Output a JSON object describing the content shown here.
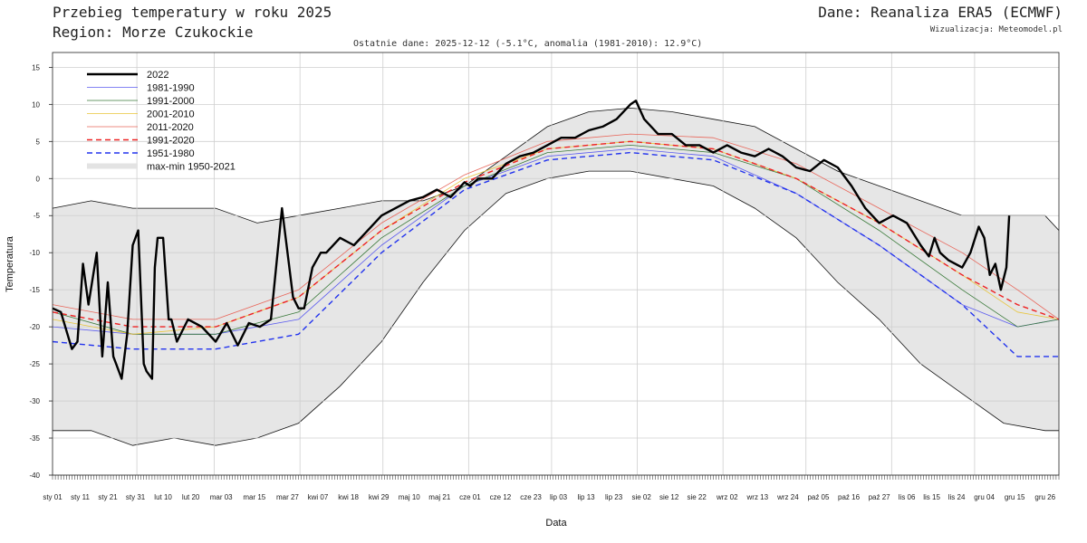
{
  "header": {
    "title": "Przebieg temperatury w roku 2025",
    "region": "Region: Morze Czukockie",
    "source": "Dane: Reanaliza ERA5 (ECMWF)",
    "credit": "Wizualizacja: Meteomodel.pl",
    "latest": "Ostatnie dane: 2025-12-12 (-5.1°C, anomalia (1981-2010): 12.9°C)"
  },
  "chart_data": {
    "type": "line",
    "xlabel": "Data",
    "ylabel": "Temperatura",
    "ylim": [
      -40,
      17
    ],
    "y_ticks": [
      15,
      10,
      5,
      0,
      -5,
      -10,
      -15,
      -20,
      -25,
      -30,
      -35,
      -40
    ],
    "x_ticks": [
      {
        "doy": 1,
        "label": "sty 01"
      },
      {
        "doy": 11,
        "label": "sty 11"
      },
      {
        "doy": 21,
        "label": "sty 21"
      },
      {
        "doy": 31,
        "label": "sty 31"
      },
      {
        "doy": 41,
        "label": "lut 10"
      },
      {
        "doy": 51,
        "label": "lut 20"
      },
      {
        "doy": 62,
        "label": "mar 03"
      },
      {
        "doy": 74,
        "label": "mar 15"
      },
      {
        "doy": 86,
        "label": "mar 27"
      },
      {
        "doy": 97,
        "label": "kwi 07"
      },
      {
        "doy": 108,
        "label": "kwi 18"
      },
      {
        "doy": 119,
        "label": "kwi 29"
      },
      {
        "doy": 130,
        "label": "maj 10"
      },
      {
        "doy": 141,
        "label": "maj 21"
      },
      {
        "doy": 152,
        "label": "cze 01"
      },
      {
        "doy": 163,
        "label": "cze 12"
      },
      {
        "doy": 174,
        "label": "cze 23"
      },
      {
        "doy": 184,
        "label": "lip 03"
      },
      {
        "doy": 194,
        "label": "lip 13"
      },
      {
        "doy": 204,
        "label": "lip 23"
      },
      {
        "doy": 214,
        "label": "sie 02"
      },
      {
        "doy": 224,
        "label": "sie 12"
      },
      {
        "doy": 234,
        "label": "sie 22"
      },
      {
        "doy": 245,
        "label": "wrz 02"
      },
      {
        "doy": 256,
        "label": "wrz 13"
      },
      {
        "doy": 267,
        "label": "wrz 24"
      },
      {
        "doy": 278,
        "label": "paź 05"
      },
      {
        "doy": 289,
        "label": "paź 16"
      },
      {
        "doy": 300,
        "label": "paź 27"
      },
      {
        "doy": 310,
        "label": "lis 06"
      },
      {
        "doy": 319,
        "label": "lis 15"
      },
      {
        "doy": 328,
        "label": "lis 24"
      },
      {
        "doy": 338,
        "label": "gru 04"
      },
      {
        "doy": 349,
        "label": "gru 15"
      },
      {
        "doy": 360,
        "label": "gru 26"
      }
    ],
    "legend_position": "top-left",
    "grid": true,
    "band": {
      "name": "max-min 1950-2021",
      "color": "#e6e6e6",
      "doy": [
        1,
        15,
        30,
        45,
        60,
        75,
        90,
        105,
        120,
        135,
        150,
        165,
        180,
        195,
        210,
        225,
        240,
        255,
        270,
        285,
        300,
        315,
        330,
        345,
        360,
        365
      ],
      "max": [
        -4,
        -3,
        -4,
        -4,
        -4,
        -6,
        -5,
        -4,
        -3,
        -3,
        -1,
        3,
        7,
        9,
        9.5,
        9,
        8,
        7,
        4,
        1,
        -1,
        -3,
        -5,
        -5,
        -5,
        -7
      ],
      "min": [
        -34,
        -34,
        -36,
        -35,
        -36,
        -35,
        -33,
        -28,
        -22,
        -14,
        -7,
        -2,
        0,
        1,
        1,
        0,
        -1,
        -4,
        -8,
        -14,
        -19,
        -25,
        -29,
        -33,
        -34,
        -34
      ]
    },
    "series": [
      {
        "name": "1981-1990",
        "color": "#5b5bef",
        "dash": "",
        "width": 0.8,
        "doy": [
          1,
          30,
          60,
          90,
          120,
          150,
          180,
          210,
          240,
          270,
          300,
          330,
          350,
          365
        ],
        "values": [
          -20,
          -21,
          -21,
          -19,
          -9,
          -1,
          3,
          4,
          3,
          -2,
          -9,
          -17,
          -20,
          -19
        ]
      },
      {
        "name": "1991-2000",
        "color": "#3a7a3a",
        "dash": "",
        "width": 0.8,
        "doy": [
          1,
          30,
          60,
          90,
          120,
          150,
          180,
          210,
          240,
          270,
          300,
          330,
          350,
          365
        ],
        "values": [
          -18,
          -21,
          -21,
          -18,
          -8,
          -1,
          3.5,
          4.5,
          3.5,
          0,
          -7,
          -15,
          -20,
          -19
        ]
      },
      {
        "name": "2001-2010",
        "color": "#e8c53a",
        "dash": "",
        "width": 0.8,
        "doy": [
          1,
          30,
          60,
          90,
          120,
          150,
          180,
          210,
          240,
          270,
          300,
          330,
          350,
          365
        ],
        "values": [
          -19,
          -21,
          -20,
          -16,
          -7,
          0,
          4,
          5,
          4,
          0,
          -6,
          -13,
          -18,
          -19
        ]
      },
      {
        "name": "2011-2020",
        "color": "#e8665a",
        "dash": "",
        "width": 0.8,
        "doy": [
          1,
          30,
          60,
          90,
          120,
          150,
          180,
          210,
          240,
          270,
          300,
          330,
          350,
          365
        ],
        "values": [
          -17,
          -19,
          -19,
          -15,
          -6,
          0.5,
          5,
          6,
          5.5,
          2,
          -4,
          -10,
          -15,
          -19
        ]
      },
      {
        "name": "1991-2020",
        "color": "#ee2222",
        "dash": "6,4",
        "width": 1.4,
        "doy": [
          1,
          30,
          60,
          90,
          120,
          150,
          180,
          210,
          240,
          270,
          300,
          330,
          350,
          365
        ],
        "values": [
          -18,
          -20,
          -20,
          -16,
          -7,
          -0.5,
          4,
          5,
          4,
          0,
          -6,
          -13,
          -17,
          -19
        ]
      },
      {
        "name": "1951-1980",
        "color": "#2233ee",
        "dash": "6,4",
        "width": 1.4,
        "doy": [
          1,
          30,
          60,
          90,
          120,
          150,
          180,
          210,
          240,
          270,
          300,
          330,
          350,
          365
        ],
        "values": [
          -22,
          -23,
          -23,
          -21,
          -10,
          -1.5,
          2.5,
          3.5,
          2.5,
          -2,
          -9,
          -17,
          -24,
          -24
        ]
      },
      {
        "name": "2022",
        "color": "#000000",
        "dash": "",
        "width": 2.4,
        "doy": [
          1,
          4,
          8,
          10,
          12,
          14,
          17,
          19,
          21,
          23,
          24,
          26,
          28,
          30,
          32,
          34,
          35,
          37,
          38,
          39,
          41,
          43,
          44,
          46,
          50,
          55,
          60,
          64,
          68,
          72,
          76,
          80,
          84,
          88,
          90,
          92,
          95,
          98,
          100,
          105,
          110,
          115,
          120,
          125,
          130,
          135,
          140,
          145,
          150,
          152,
          155,
          160,
          165,
          170,
          175,
          180,
          185,
          190,
          195,
          200,
          205,
          210,
          212,
          215,
          220,
          225,
          230,
          235,
          240,
          245,
          250,
          255,
          260,
          265,
          270,
          275,
          280,
          285,
          290,
          295,
          300,
          305,
          310,
          315,
          318,
          320,
          322,
          325,
          330,
          333,
          336,
          338,
          340,
          342,
          344,
          346,
          347
        ],
        "values": [
          -17.5,
          -18,
          -23,
          -22,
          -11.5,
          -17,
          -10,
          -24,
          -14,
          -24,
          -25,
          -27,
          -21,
          -9,
          -7,
          -25,
          -26,
          -27,
          -12,
          -8,
          -8,
          -19,
          -19,
          -22,
          -19,
          -20,
          -22,
          -19.5,
          -22.5,
          -19.5,
          -20,
          -19,
          -4,
          -16,
          -17.5,
          -17.5,
          -12,
          -10,
          -10,
          -8,
          -9,
          -7,
          -5,
          -4,
          -3,
          -2.5,
          -1.5,
          -2.5,
          -0.5,
          -1,
          0,
          0,
          2,
          3,
          3.5,
          4.5,
          5.5,
          5.5,
          6.5,
          7,
          8,
          10,
          10.5,
          8,
          6,
          6,
          4.5,
          4.5,
          3.5,
          4.5,
          3.5,
          3,
          4,
          3,
          1.5,
          1,
          2.5,
          1.5,
          -1,
          -4,
          -6,
          -5,
          -6,
          -9,
          -10.5,
          -8,
          -10,
          -11,
          -12,
          -10,
          -6.5,
          -8,
          -13,
          -11.5,
          -15,
          -12,
          -5
        ]
      }
    ]
  }
}
